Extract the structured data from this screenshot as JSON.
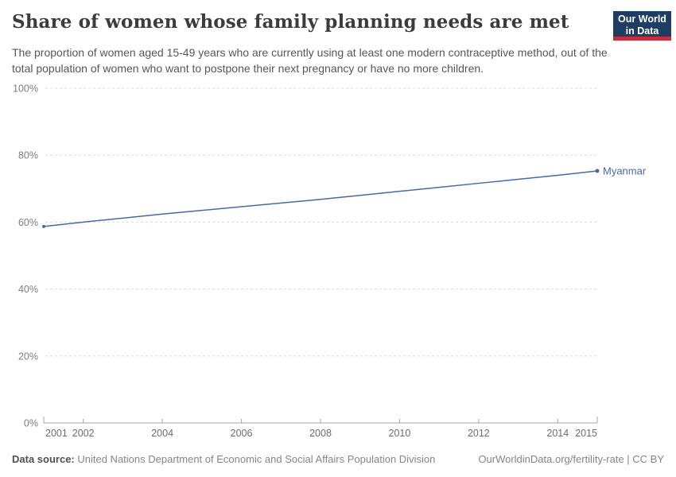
{
  "header": {
    "title": "Share of women whose family planning needs are met",
    "subtitle": "The proportion of women aged 15-49 years who are currently using at least one modern contraceptive method, out of the total population of women who want to postpone their next pregnancy or have no more children.",
    "logo": {
      "line1": "Our World",
      "line2": "in Data",
      "bg_color": "#1d3d63",
      "bar_color": "#c72e3d"
    }
  },
  "chart_data": {
    "type": "line",
    "title": "Share of women whose family planning needs are met",
    "xlabel": "",
    "ylabel": "",
    "xlim": [
      2001,
      2015
    ],
    "ylim": [
      0,
      100
    ],
    "grid": "horizontal-dashed",
    "legend_position": "end-of-line-label",
    "yticks": [
      0,
      20,
      40,
      60,
      80,
      100
    ],
    "ytick_suffix": "%",
    "xticks": [
      2001,
      2002,
      2004,
      2006,
      2008,
      2010,
      2012,
      2014,
      2015
    ],
    "series": [
      {
        "name": "Myanmar",
        "color": "#4a69a2",
        "x": [
          2001,
          2002,
          2003,
          2004,
          2005,
          2006,
          2007,
          2008,
          2009,
          2010,
          2011,
          2012,
          2013,
          2014,
          2015
        ],
        "values": [
          58.7,
          60.0,
          61.2,
          62.4,
          63.5,
          64.6,
          65.7,
          66.8,
          68.0,
          69.2,
          70.4,
          71.6,
          72.8,
          74.0,
          75.3
        ]
      }
    ]
  },
  "footer": {
    "datasource_label": "Data source:",
    "datasource_text": " United Nations Department of Economic and Social Affairs Population Division",
    "credit": "OurWorldinData.org/fertility-rate | CC BY"
  },
  "colors": {
    "title": "#3c3c3c",
    "subtitle": "#575757",
    "gridline": "#dcdcdc",
    "axis": "#a5a5a5",
    "y_tick_label": "#7e7e7e",
    "x_tick_label": "#6d6d6d",
    "series_blue": "#4a69a2",
    "logo_navy": "#1d3d63",
    "logo_red": "#c72e3d"
  }
}
